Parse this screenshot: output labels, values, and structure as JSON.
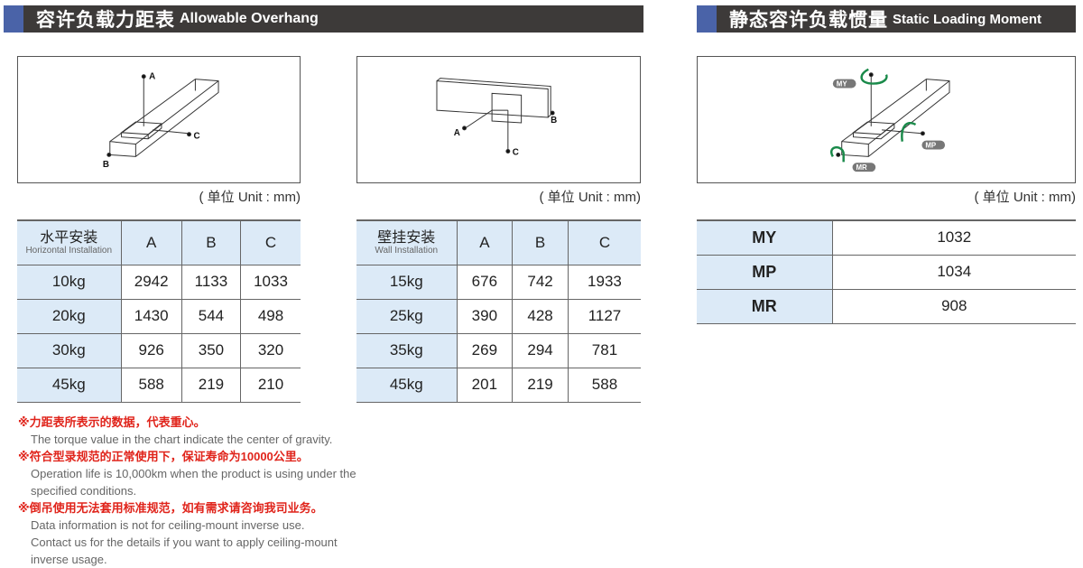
{
  "overhang": {
    "title_cn": "容许负载力距表",
    "title_en": "Allowable Overhang",
    "unit": "( 单位 Unit : mm)",
    "horizontal": {
      "header_cn": "水平安装",
      "header_en": "Horizontal Installation",
      "cols": [
        "A",
        "B",
        "C"
      ],
      "rows": [
        {
          "load": "10kg",
          "v": [
            "2942",
            "1133",
            "1033"
          ]
        },
        {
          "load": "20kg",
          "v": [
            "1430",
            "544",
            "498"
          ]
        },
        {
          "load": "30kg",
          "v": [
            "926",
            "350",
            "320"
          ]
        },
        {
          "load": "45kg",
          "v": [
            "588",
            "219",
            "210"
          ]
        }
      ]
    },
    "wall": {
      "header_cn": "壁挂安装",
      "header_en": "Wall Installation",
      "cols": [
        "A",
        "B",
        "C"
      ],
      "rows": [
        {
          "load": "15kg",
          "v": [
            "676",
            "742",
            "1933"
          ]
        },
        {
          "load": "25kg",
          "v": [
            "390",
            "428",
            "1127"
          ]
        },
        {
          "load": "35kg",
          "v": [
            "269",
            "294",
            "781"
          ]
        },
        {
          "load": "45kg",
          "v": [
            "201",
            "219",
            "588"
          ]
        }
      ]
    },
    "diagram_labels": [
      "A",
      "B",
      "C"
    ]
  },
  "moment": {
    "title_cn": "静态容许负载惯量",
    "title_en": "Static Loading Moment",
    "unit": "( 单位 Unit : mm)",
    "diagram_labels": [
      "MY",
      "MP",
      "MR"
    ],
    "arrow_color": "#1a8a4a",
    "rows": [
      {
        "label": "MY",
        "value": "1032"
      },
      {
        "label": "MP",
        "value": "1034"
      },
      {
        "label": "MR",
        "value": "908"
      }
    ]
  },
  "notes": [
    {
      "cn": "※力距表所表示的数据，代表重心。",
      "en": [
        "The torque value in the chart indicate the center of gravity."
      ]
    },
    {
      "cn": "※符合型录规范的正常使用下，保证寿命为10000公里。",
      "en": [
        "Operation life is 10,000km when the product is using under the",
        " specified conditions."
      ]
    },
    {
      "cn": "※倒吊使用无法套用标准规范，如有需求请咨询我司业务。",
      "en": [
        "Data information is not for ceiling-mount inverse use.",
        "Contact us for the details if you want to apply ceiling-mount",
        "inverse usage."
      ]
    }
  ]
}
